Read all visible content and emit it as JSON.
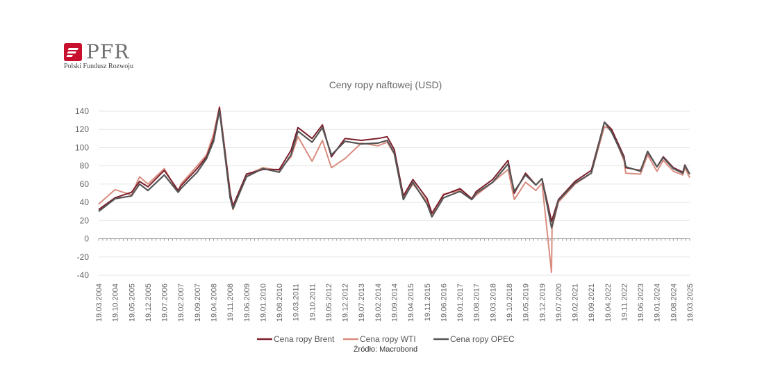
{
  "brand": {
    "name": "PFR",
    "subtitle": "Polski Fundusz Rozwoju",
    "accent_color": "#c8102e",
    "icon": "pfr-logo-icon"
  },
  "chart_data": {
    "type": "line",
    "title": "Ceny ropy naftowej (USD)",
    "xlabel": "",
    "ylabel": "",
    "ylim": [
      -40,
      140
    ],
    "yticks": [
      -40,
      -20,
      0,
      20,
      40,
      60,
      80,
      100,
      120,
      140
    ],
    "xlim": [
      "2004-03-19",
      "2025-03-19"
    ],
    "xtick_labels": [
      "19.03.2004",
      "19.10.2004",
      "19.05.2005",
      "19.12.2005",
      "19.07.2006",
      "19.02.2007",
      "19.09.2007",
      "19.04.2008",
      "19.11.2008",
      "19.06.2009",
      "19.01.2010",
      "19.08.2010",
      "19.03.2011",
      "19.10.2011",
      "19.05.2012",
      "19.12.2012",
      "19.07.2013",
      "19.02.2014",
      "19.09.2014",
      "19.04.2015",
      "19.11.2015",
      "19.06.2016",
      "19.01.2017",
      "19.08.2017",
      "19.03.2018",
      "19.10.2018",
      "19.05.2019",
      "19.12.2019",
      "19.07.2020",
      "19.02.2021",
      "19.09.2021",
      "19.04.2022",
      "19.11.2022",
      "19.06.2023",
      "19.01.2024",
      "19.08.2024",
      "19.03.2025"
    ],
    "grid": true,
    "legend_position": "bottom",
    "source": "Źródło: Macrobond",
    "series": [
      {
        "name": "Cena ropy Brent",
        "color": "#7b1e2b",
        "points": [
          [
            "2004-03-19",
            32
          ],
          [
            "2004-10-19",
            45
          ],
          [
            "2005-05-19",
            51
          ],
          [
            "2005-09-01",
            63
          ],
          [
            "2005-12-19",
            57
          ],
          [
            "2006-07-19",
            75
          ],
          [
            "2007-01-15",
            53
          ],
          [
            "2007-02-19",
            58
          ],
          [
            "2007-09-19",
            77
          ],
          [
            "2008-01-19",
            90
          ],
          [
            "2008-04-19",
            110
          ],
          [
            "2008-07-04",
            144
          ],
          [
            "2008-11-19",
            50
          ],
          [
            "2008-12-26",
            36
          ],
          [
            "2009-06-19",
            71
          ],
          [
            "2010-01-19",
            76
          ],
          [
            "2010-08-19",
            76
          ],
          [
            "2011-01-19",
            97
          ],
          [
            "2011-04-19",
            122
          ],
          [
            "2011-10-19",
            110
          ],
          [
            "2012-03-01",
            125
          ],
          [
            "2012-06-25",
            90
          ],
          [
            "2012-12-19",
            110
          ],
          [
            "2013-07-19",
            108
          ],
          [
            "2014-02-19",
            110
          ],
          [
            "2014-06-19",
            112
          ],
          [
            "2014-09-19",
            98
          ],
          [
            "2015-01-15",
            47
          ],
          [
            "2015-05-19",
            65
          ],
          [
            "2015-11-19",
            44
          ],
          [
            "2016-01-20",
            28
          ],
          [
            "2016-06-19",
            48
          ],
          [
            "2017-01-19",
            55
          ],
          [
            "2017-06-21",
            44
          ],
          [
            "2017-08-19",
            52
          ],
          [
            "2018-03-19",
            65
          ],
          [
            "2018-10-04",
            86
          ],
          [
            "2018-12-24",
            50
          ],
          [
            "2019-05-19",
            72
          ],
          [
            "2019-10-01",
            59
          ],
          [
            "2019-12-19",
            66
          ],
          [
            "2020-04-21",
            19
          ],
          [
            "2020-07-19",
            43
          ],
          [
            "2021-02-19",
            63
          ],
          [
            "2021-09-19",
            75
          ],
          [
            "2022-03-08",
            128
          ],
          [
            "2022-06-10",
            120
          ],
          [
            "2022-11-19",
            90
          ],
          [
            "2022-12-10",
            78
          ],
          [
            "2023-06-19",
            75
          ],
          [
            "2023-09-19",
            95
          ],
          [
            "2024-01-19",
            79
          ],
          [
            "2024-04-10",
            90
          ],
          [
            "2024-08-19",
            78
          ],
          [
            "2024-12-19",
            73
          ],
          [
            "2025-01-15",
            81
          ],
          [
            "2025-03-19",
            71
          ]
        ]
      },
      {
        "name": "Cena ropy WTI",
        "color": "#d98c7f",
        "points": [
          [
            "2004-03-19",
            38
          ],
          [
            "2004-10-19",
            54
          ],
          [
            "2005-05-19",
            48
          ],
          [
            "2005-09-01",
            68
          ],
          [
            "2005-12-19",
            60
          ],
          [
            "2006-07-19",
            77
          ],
          [
            "2007-01-15",
            51
          ],
          [
            "2007-02-19",
            60
          ],
          [
            "2007-09-19",
            80
          ],
          [
            "2008-01-19",
            92
          ],
          [
            "2008-04-19",
            115
          ],
          [
            "2008-07-04",
            145
          ],
          [
            "2008-11-19",
            52
          ],
          [
            "2008-12-26",
            32
          ],
          [
            "2009-06-19",
            70
          ],
          [
            "2010-01-19",
            78
          ],
          [
            "2010-08-19",
            75
          ],
          [
            "2011-01-19",
            90
          ],
          [
            "2011-04-19",
            112
          ],
          [
            "2011-10-19",
            85
          ],
          [
            "2012-03-01",
            108
          ],
          [
            "2012-06-25",
            78
          ],
          [
            "2012-12-19",
            88
          ],
          [
            "2013-07-19",
            105
          ],
          [
            "2014-02-19",
            102
          ],
          [
            "2014-06-19",
            106
          ],
          [
            "2014-09-19",
            93
          ],
          [
            "2015-01-15",
            45
          ],
          [
            "2015-05-19",
            60
          ],
          [
            "2015-11-19",
            41
          ],
          [
            "2016-01-20",
            27
          ],
          [
            "2016-06-19",
            49
          ],
          [
            "2017-01-19",
            53
          ],
          [
            "2017-06-21",
            43
          ],
          [
            "2017-08-19",
            48
          ],
          [
            "2018-03-19",
            62
          ],
          [
            "2018-10-04",
            76
          ],
          [
            "2018-12-24",
            43
          ],
          [
            "2019-05-19",
            62
          ],
          [
            "2019-10-01",
            53
          ],
          [
            "2019-12-19",
            61
          ],
          [
            "2020-04-20",
            -37
          ],
          [
            "2020-04-28",
            12
          ],
          [
            "2020-07-19",
            40
          ],
          [
            "2021-02-19",
            60
          ],
          [
            "2021-09-19",
            72
          ],
          [
            "2022-03-08",
            123
          ],
          [
            "2022-06-10",
            120
          ],
          [
            "2022-11-19",
            85
          ],
          [
            "2022-12-10",
            72
          ],
          [
            "2023-06-19",
            71
          ],
          [
            "2023-09-19",
            92
          ],
          [
            "2024-01-19",
            74
          ],
          [
            "2024-04-10",
            86
          ],
          [
            "2024-08-19",
            74
          ],
          [
            "2024-12-19",
            70
          ],
          [
            "2025-01-15",
            78
          ],
          [
            "2025-03-19",
            67
          ]
        ]
      },
      {
        "name": "Cena ropy OPEC",
        "color": "#555555",
        "points": [
          [
            "2004-03-19",
            30
          ],
          [
            "2004-10-19",
            44
          ],
          [
            "2005-05-19",
            47
          ],
          [
            "2005-09-01",
            60
          ],
          [
            "2005-12-19",
            53
          ],
          [
            "2006-07-19",
            70
          ],
          [
            "2007-01-15",
            51
          ],
          [
            "2007-02-19",
            55
          ],
          [
            "2007-09-19",
            73
          ],
          [
            "2008-01-19",
            88
          ],
          [
            "2008-04-19",
            107
          ],
          [
            "2008-07-04",
            141
          ],
          [
            "2008-11-19",
            45
          ],
          [
            "2008-12-26",
            33
          ],
          [
            "2009-06-19",
            68
          ],
          [
            "2010-01-19",
            77
          ],
          [
            "2010-08-19",
            73
          ],
          [
            "2011-01-19",
            92
          ],
          [
            "2011-04-19",
            118
          ],
          [
            "2011-10-19",
            106
          ],
          [
            "2012-03-01",
            122
          ],
          [
            "2012-06-25",
            92
          ],
          [
            "2012-12-19",
            107
          ],
          [
            "2013-07-19",
            104
          ],
          [
            "2014-02-19",
            105
          ],
          [
            "2014-06-19",
            108
          ],
          [
            "2014-09-19",
            94
          ],
          [
            "2015-01-15",
            43
          ],
          [
            "2015-05-19",
            62
          ],
          [
            "2015-11-19",
            38
          ],
          [
            "2016-01-20",
            24
          ],
          [
            "2016-06-19",
            45
          ],
          [
            "2017-01-19",
            52
          ],
          [
            "2017-06-21",
            43
          ],
          [
            "2017-08-19",
            50
          ],
          [
            "2018-03-19",
            62
          ],
          [
            "2018-10-04",
            82
          ],
          [
            "2018-12-24",
            52
          ],
          [
            "2019-05-19",
            70
          ],
          [
            "2019-10-01",
            59
          ],
          [
            "2019-12-19",
            66
          ],
          [
            "2020-04-21",
            12
          ],
          [
            "2020-07-19",
            42
          ],
          [
            "2021-02-19",
            61
          ],
          [
            "2021-09-19",
            72
          ],
          [
            "2022-03-08",
            128
          ],
          [
            "2022-06-10",
            117
          ],
          [
            "2022-11-19",
            88
          ],
          [
            "2022-12-10",
            79
          ],
          [
            "2023-06-19",
            74
          ],
          [
            "2023-09-19",
            96
          ],
          [
            "2024-01-19",
            79
          ],
          [
            "2024-04-10",
            89
          ],
          [
            "2024-08-19",
            77
          ],
          [
            "2024-12-19",
            72
          ],
          [
            "2025-01-15",
            80
          ],
          [
            "2025-03-19",
            71
          ]
        ]
      }
    ]
  }
}
